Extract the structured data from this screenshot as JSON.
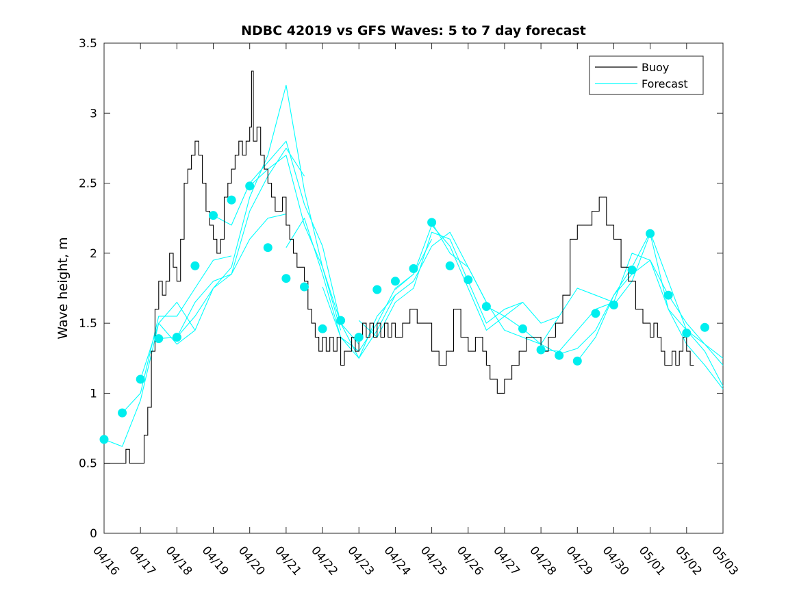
{
  "chart_data": {
    "type": "line",
    "title": "NDBC 42019 vs GFS Waves: 5 to 7 day forecast",
    "xlabel": "",
    "ylabel": "Wave height, m",
    "ylim": [
      0,
      3.5
    ],
    "xlim": [
      "04/16",
      "05/03"
    ],
    "x_tick_labels": [
      "04/16",
      "04/17",
      "04/18",
      "04/19",
      "04/20",
      "04/21",
      "04/22",
      "04/23",
      "04/24",
      "04/25",
      "04/26",
      "04/27",
      "04/28",
      "04/29",
      "04/30",
      "05/01",
      "05/02",
      "05/03"
    ],
    "y_tick_labels": [
      "0",
      "0.5",
      "1",
      "1.5",
      "2",
      "2.5",
      "3",
      "3.5"
    ],
    "y_ticks": [
      0,
      0.5,
      1,
      1.5,
      2,
      2.5,
      3,
      3.5
    ],
    "grid": false,
    "legend_position": "top-right",
    "legend": [
      "Buoy",
      "Forecast"
    ],
    "colors": {
      "buoy": "#000000",
      "forecast": "#00ffff",
      "markers": "#00eeee"
    },
    "buoy": {
      "name": "Buoy",
      "x_days": [
        0,
        0.5,
        0.6,
        0.7,
        0.9,
        1.0,
        1.1,
        1.2,
        1.3,
        1.4,
        1.5,
        1.6,
        1.7,
        1.8,
        1.9,
        2.0,
        2.1,
        2.2,
        2.3,
        2.4,
        2.5,
        2.6,
        2.7,
        2.8,
        2.9,
        3.0,
        3.1,
        3.2,
        3.3,
        3.4,
        3.5,
        3.6,
        3.7,
        3.8,
        3.9,
        4.0,
        4.05,
        4.1,
        4.2,
        4.3,
        4.4,
        4.5,
        4.6,
        4.7,
        4.8,
        4.9,
        5.0,
        5.1,
        5.2,
        5.3,
        5.4,
        5.5,
        5.6,
        5.7,
        5.8,
        5.9,
        6.0,
        6.1,
        6.2,
        6.3,
        6.4,
        6.5,
        6.6,
        6.7,
        6.8,
        6.9,
        7.0,
        7.1,
        7.2,
        7.3,
        7.4,
        7.5,
        7.6,
        7.7,
        7.8,
        7.9,
        8.0,
        8.2,
        8.4,
        8.6,
        8.8,
        9.0,
        9.2,
        9.4,
        9.6,
        9.8,
        10.0,
        10.2,
        10.4,
        10.5,
        10.6,
        10.7,
        10.8,
        10.9,
        11.0,
        11.2,
        11.4,
        11.6,
        11.8,
        12.0,
        12.2,
        12.4,
        12.6,
        12.8,
        13.0,
        13.2,
        13.4,
        13.6,
        13.8,
        14.0,
        14.2,
        14.4,
        14.6,
        14.8,
        15.0,
        15.1,
        15.2,
        15.3,
        15.4,
        15.5,
        15.6,
        15.7,
        15.8,
        15.9,
        16.0,
        16.1,
        16.2
      ],
      "values": [
        0.5,
        0.5,
        0.6,
        0.5,
        0.5,
        0.5,
        0.7,
        0.9,
        1.3,
        1.6,
        1.8,
        1.7,
        1.8,
        2.0,
        1.9,
        1.8,
        2.1,
        2.5,
        2.6,
        2.7,
        2.8,
        2.7,
        2.5,
        2.3,
        2.2,
        2.1,
        2.0,
        2.1,
        2.4,
        2.5,
        2.6,
        2.7,
        2.8,
        2.7,
        2.8,
        2.9,
        3.3,
        2.8,
        2.9,
        2.7,
        2.6,
        2.5,
        2.4,
        2.3,
        2.3,
        2.4,
        2.2,
        2.1,
        2.0,
        1.9,
        1.9,
        1.8,
        1.6,
        1.5,
        1.4,
        1.3,
        1.4,
        1.3,
        1.4,
        1.3,
        1.4,
        1.2,
        1.3,
        1.3,
        1.4,
        1.3,
        1.4,
        1.5,
        1.4,
        1.5,
        1.4,
        1.5,
        1.4,
        1.5,
        1.4,
        1.5,
        1.4,
        1.5,
        1.6,
        1.5,
        1.5,
        1.3,
        1.2,
        1.3,
        1.6,
        1.4,
        1.3,
        1.4,
        1.3,
        1.2,
        1.1,
        1.1,
        1.0,
        1.0,
        1.1,
        1.2,
        1.3,
        1.4,
        1.4,
        1.3,
        1.4,
        1.5,
        1.7,
        2.1,
        2.2,
        2.2,
        2.3,
        2.4,
        2.2,
        2.1,
        1.9,
        1.8,
        1.6,
        1.5,
        1.4,
        1.5,
        1.4,
        1.3,
        1.2,
        1.2,
        1.3,
        1.2,
        1.3,
        1.4,
        1.3,
        1.2,
        1.2
      ]
    },
    "forecast_runs": [
      {
        "x_days": [
          0.0,
          0.5,
          1.0,
          1.5,
          2.0,
          2.5
        ],
        "values": [
          0.67,
          0.62,
          0.95,
          1.5,
          1.35,
          1.45
        ]
      },
      {
        "x_days": [
          0.5,
          1.0,
          1.5,
          2.0,
          2.5,
          3.0,
          3.5
        ],
        "values": [
          0.86,
          1.0,
          1.55,
          1.55,
          1.75,
          1.95,
          1.98
        ]
      },
      {
        "x_days": [
          1.0,
          1.5,
          2.0,
          2.5,
          3.0,
          3.5,
          4.0,
          4.5,
          5.0
        ],
        "values": [
          1.1,
          1.5,
          1.65,
          1.45,
          1.75,
          1.85,
          2.1,
          2.25,
          2.28
        ]
      },
      {
        "x_days": [
          1.5,
          2.0,
          2.5,
          3.0,
          3.5,
          4.0,
          4.5,
          5.0,
          5.5
        ],
        "values": [
          1.39,
          1.4,
          1.65,
          1.8,
          1.85,
          2.3,
          2.55,
          2.75,
          2.55
        ]
      },
      {
        "x_days": [
          2.0,
          2.5,
          3.0,
          3.5,
          4.0,
          4.5,
          5.0,
          5.5,
          6.0,
          6.5
        ],
        "values": [
          1.4,
          1.55,
          1.75,
          1.9,
          2.4,
          2.7,
          3.2,
          2.45,
          1.9,
          1.45
        ]
      },
      {
        "x_days": [
          3.0,
          3.5,
          4.0,
          4.5,
          5.0,
          5.5,
          6.0,
          6.5,
          7.0
        ],
        "values": [
          2.27,
          2.2,
          2.5,
          2.65,
          2.8,
          2.35,
          2.05,
          1.5,
          1.35
        ]
      },
      {
        "x_days": [
          4.0,
          4.5,
          5.0,
          5.5,
          6.0,
          6.5,
          7.0,
          7.5,
          8.0
        ],
        "values": [
          2.48,
          2.6,
          2.7,
          2.2,
          1.9,
          1.5,
          1.25,
          1.55,
          1.7
        ]
      },
      {
        "x_days": [
          5.0,
          5.5,
          6.0,
          6.5,
          7.0,
          7.5,
          8.0,
          8.5,
          9.0
        ],
        "values": [
          2.04,
          2.25,
          1.85,
          1.4,
          1.3,
          1.5,
          1.75,
          1.85,
          2.1
        ]
      },
      {
        "x_days": [
          6.0,
          6.5,
          7.0,
          7.5,
          8.0,
          8.5,
          9.0,
          9.5,
          10.0,
          10.5
        ],
        "values": [
          1.76,
          1.4,
          1.25,
          1.45,
          1.7,
          1.8,
          2.05,
          2.15,
          1.9,
          1.65
        ]
      },
      {
        "x_days": [
          7.0,
          7.5,
          8.0,
          8.5,
          9.0,
          9.5,
          10.0,
          10.5,
          11.0,
          11.5
        ],
        "values": [
          1.52,
          1.4,
          1.65,
          1.75,
          2.15,
          2.1,
          1.8,
          1.5,
          1.6,
          1.65
        ]
      },
      {
        "x_days": [
          8.0,
          8.5,
          9.0,
          9.5,
          10.0,
          10.5,
          11.0,
          11.5,
          12.0,
          12.5
        ],
        "values": [
          1.74,
          1.85,
          2.2,
          2.05,
          1.75,
          1.45,
          1.55,
          1.65,
          1.5,
          1.55
        ]
      },
      {
        "x_days": [
          9.0,
          9.5,
          10.0,
          10.5,
          11.0,
          11.5,
          12.0,
          12.5,
          13.0,
          13.5,
          14.0
        ],
        "values": [
          2.22,
          2.0,
          1.9,
          1.65,
          1.45,
          1.4,
          1.35,
          1.55,
          1.75,
          1.7,
          1.65
        ]
      },
      {
        "x_days": [
          10.5,
          11.0,
          11.5,
          12.0,
          12.5,
          13.0,
          13.5,
          14.0,
          14.5,
          15.0,
          15.5,
          16.0,
          16.5,
          17.0
        ],
        "values": [
          1.62,
          1.55,
          1.46,
          1.35,
          1.28,
          1.32,
          1.45,
          1.7,
          1.85,
          1.95,
          1.6,
          1.45,
          1.35,
          1.25
        ]
      },
      {
        "x_days": [
          12.0,
          12.5,
          13.0,
          13.5,
          14.0,
          14.5,
          15.0,
          15.5,
          16.0,
          16.5,
          17.0
        ],
        "values": [
          1.31,
          1.3,
          1.45,
          1.6,
          1.65,
          2.0,
          1.95,
          1.7,
          1.5,
          1.35,
          1.2
        ]
      },
      {
        "x_days": [
          13.0,
          13.5,
          14.0,
          14.5,
          15.0,
          15.5,
          16.0,
          16.5,
          17.0
        ],
        "values": [
          1.23,
          1.4,
          1.7,
          1.9,
          2.15,
          1.8,
          1.45,
          1.3,
          1.05
        ]
      },
      {
        "x_days": [
          14.0,
          14.5,
          15.0,
          15.5,
          16.0,
          16.5,
          17.0
        ],
        "values": [
          1.63,
          1.8,
          2.14,
          1.6,
          1.35,
          1.2,
          1.03
        ]
      }
    ],
    "forecast_markers": {
      "x_days": [
        0.0,
        0.5,
        1.0,
        1.5,
        2.0,
        2.5,
        3.0,
        3.5,
        4.0,
        4.5,
        5.0,
        5.5,
        6.0,
        6.5,
        7.0,
        7.5,
        8.0,
        8.5,
        9.0,
        9.5,
        10.0,
        10.5,
        11.5,
        12.0,
        12.5,
        13.0,
        13.5,
        14.0,
        14.5,
        15.0,
        15.5,
        16.0,
        16.5
      ],
      "values": [
        0.67,
        0.86,
        1.1,
        1.39,
        1.4,
        1.91,
        2.27,
        2.38,
        2.48,
        2.04,
        1.82,
        1.76,
        1.46,
        1.52,
        1.4,
        1.74,
        1.8,
        1.89,
        2.22,
        1.91,
        1.81,
        1.62,
        1.46,
        1.31,
        1.27,
        1.23,
        1.57,
        1.63,
        1.88,
        2.14,
        1.7,
        1.43,
        1.47
      ]
    }
  }
}
